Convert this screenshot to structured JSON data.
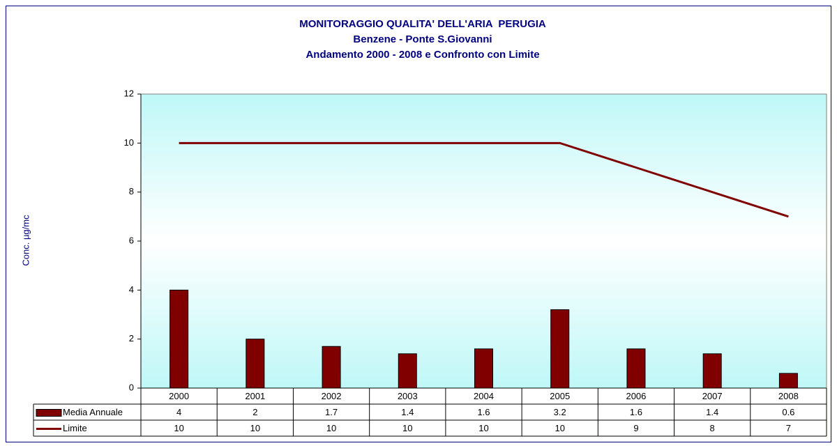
{
  "chart_data": {
    "type": "bar",
    "title": [
      "MONITORAGGIO QUALITA' DELL'ARIA  PERUGIA",
      "Benzene - Ponte S.Giovanni",
      "Andamento 2000 - 2008 e Confronto con Limite"
    ],
    "y_label": "Conc. µg/mc",
    "categories": [
      "2000",
      "2001",
      "2002",
      "2003",
      "2004",
      "2005",
      "2006",
      "2007",
      "2008"
    ],
    "series": [
      {
        "name": "Media Annuale",
        "type": "bar",
        "color": "#800000",
        "values": [
          4,
          2,
          1.7,
          1.4,
          1.6,
          3.2,
          1.6,
          1.4,
          0.6
        ]
      },
      {
        "name": "Limite",
        "type": "line",
        "color": "#800000",
        "values": [
          10,
          10,
          10,
          10,
          10,
          10,
          9,
          8,
          7
        ]
      }
    ],
    "ylim": [
      0,
      12
    ],
    "yticks": [
      0,
      2,
      4,
      6,
      8,
      10,
      12
    ],
    "data_table": true
  }
}
